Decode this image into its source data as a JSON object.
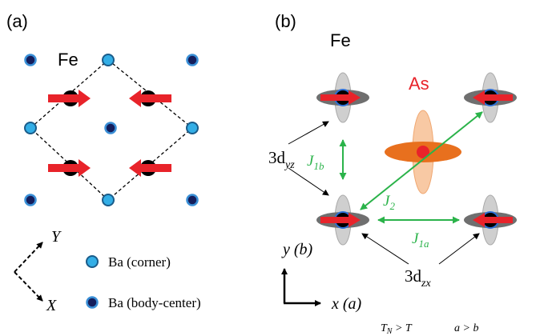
{
  "panel_a": {
    "label": "(a)",
    "fe": "Fe",
    "axis_y": "Y",
    "axis_x": "X",
    "legend": [
      "Ba (corner)",
      "Ba (body-center)"
    ]
  },
  "panel_b": {
    "label": "(b)",
    "fe": "Fe",
    "as": "As",
    "orbital_yz": {
      "main": "3d",
      "sub": "yz"
    },
    "orbital_zx": {
      "main": "3d",
      "sub": "zx"
    },
    "j1b": {
      "main": "J",
      "sub": "1b"
    },
    "j2": {
      "main": "J",
      "sub": "2"
    },
    "j1a": {
      "main": "J",
      "sub": "1a"
    },
    "axis_y": "y (b)",
    "axis_x": "x (a)",
    "condition_1": {
      "main": "T",
      "sub": "N",
      "rest": " > T"
    },
    "condition_2": "a > b"
  }
}
